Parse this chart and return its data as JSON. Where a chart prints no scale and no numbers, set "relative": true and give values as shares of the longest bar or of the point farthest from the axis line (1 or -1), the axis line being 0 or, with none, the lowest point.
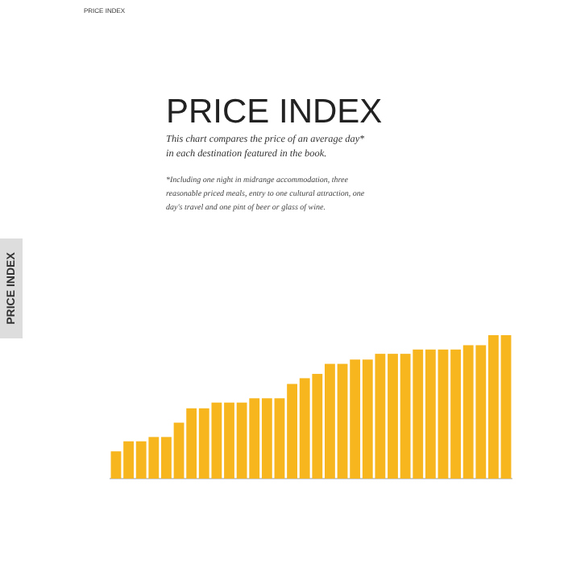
{
  "chart_data": {
    "type": "bar",
    "title": "PRICE INDEX",
    "subtitle": "This chart compares the price of an average day* in each destination featured in the book.",
    "annotations": [
      "*Including one night in midrange accommodation, three reasonable priced meals, entry to one cultural attraction, one day's travel and one pint of beer or glass of wine.",
      "PRICE INDEX",
      "PRICE INDEX"
    ],
    "relative": true,
    "color": "#f7b51e",
    "categories": [
      null,
      null,
      null,
      null,
      null,
      null,
      null,
      null,
      null,
      null,
      null,
      null,
      null,
      null,
      null,
      null,
      null,
      null,
      null,
      null,
      null,
      null,
      null,
      null,
      null,
      null,
      null,
      null,
      null,
      null,
      null,
      null
    ],
    "values": [
      0.19,
      0.26,
      0.26,
      0.29,
      0.29,
      0.39,
      0.49,
      0.49,
      0.53,
      0.53,
      0.53,
      0.56,
      0.56,
      0.56,
      0.66,
      0.7,
      0.73,
      0.8,
      0.8,
      0.83,
      0.83,
      0.87,
      0.87,
      0.87,
      0.9,
      0.9,
      0.9,
      0.9,
      0.93,
      0.93,
      1,
      1
    ]
  }
}
